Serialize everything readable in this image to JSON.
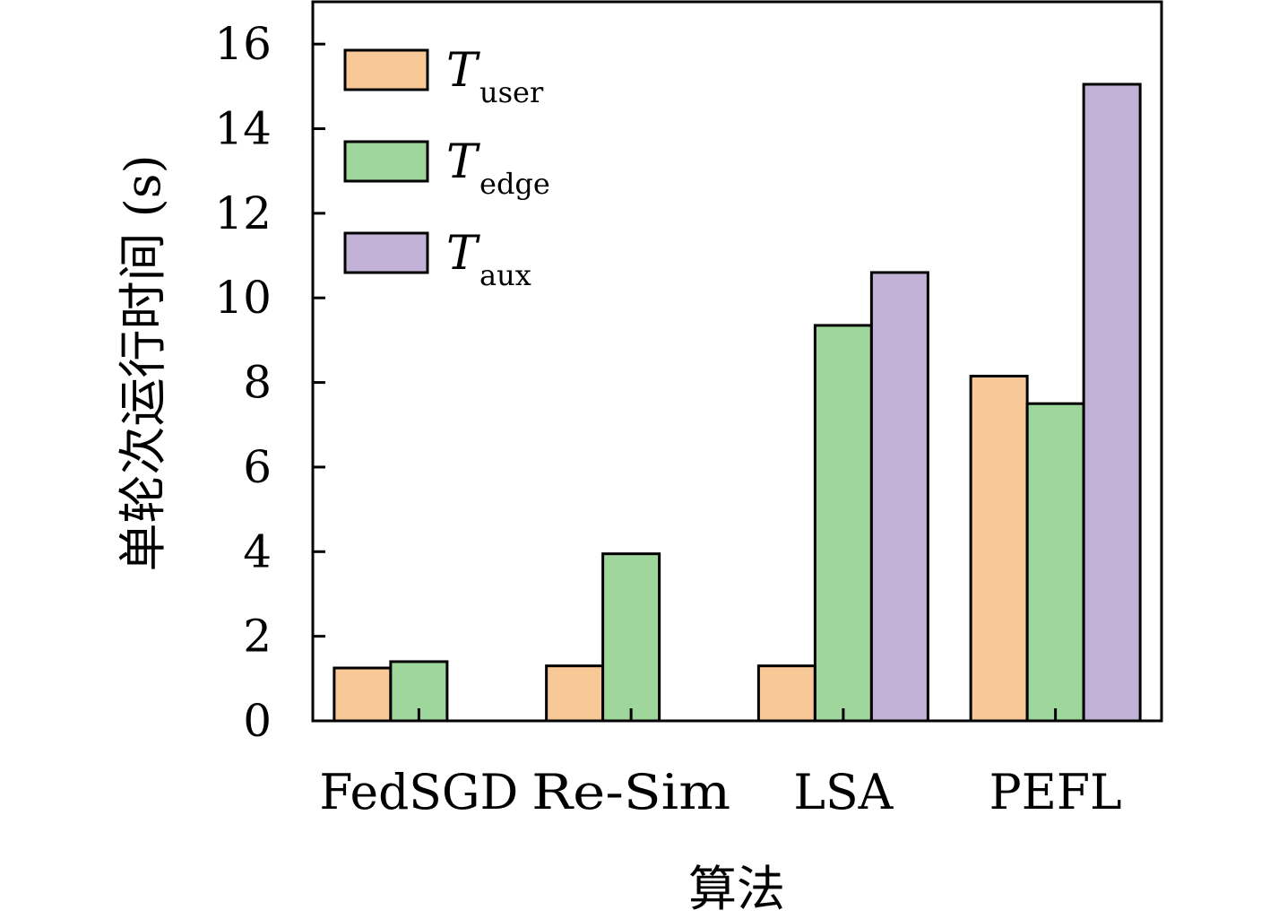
{
  "chart_data": {
    "type": "bar",
    "categories": [
      "FedSGD",
      "Re-Sim",
      "LSA",
      "PEFL"
    ],
    "series": [
      {
        "name": "T",
        "subscript": "user",
        "color": "#F9C897",
        "values": [
          1.25,
          1.3,
          1.3,
          8.15
        ]
      },
      {
        "name": "T",
        "subscript": "edge",
        "color": "#9ED69B",
        "values": [
          1.4,
          3.95,
          9.35,
          7.5
        ]
      },
      {
        "name": "T",
        "subscript": "aux",
        "color": "#C3B2D8",
        "values": [
          null,
          null,
          10.6,
          15.05
        ]
      }
    ],
    "xlabel": "算法",
    "ylabel": "单轮次运行时间 (s)",
    "ylim": [
      0,
      17
    ],
    "yticks": [
      0,
      2,
      4,
      6,
      8,
      10,
      12,
      14,
      16
    ],
    "grid": false,
    "legend_position": "top-left"
  }
}
